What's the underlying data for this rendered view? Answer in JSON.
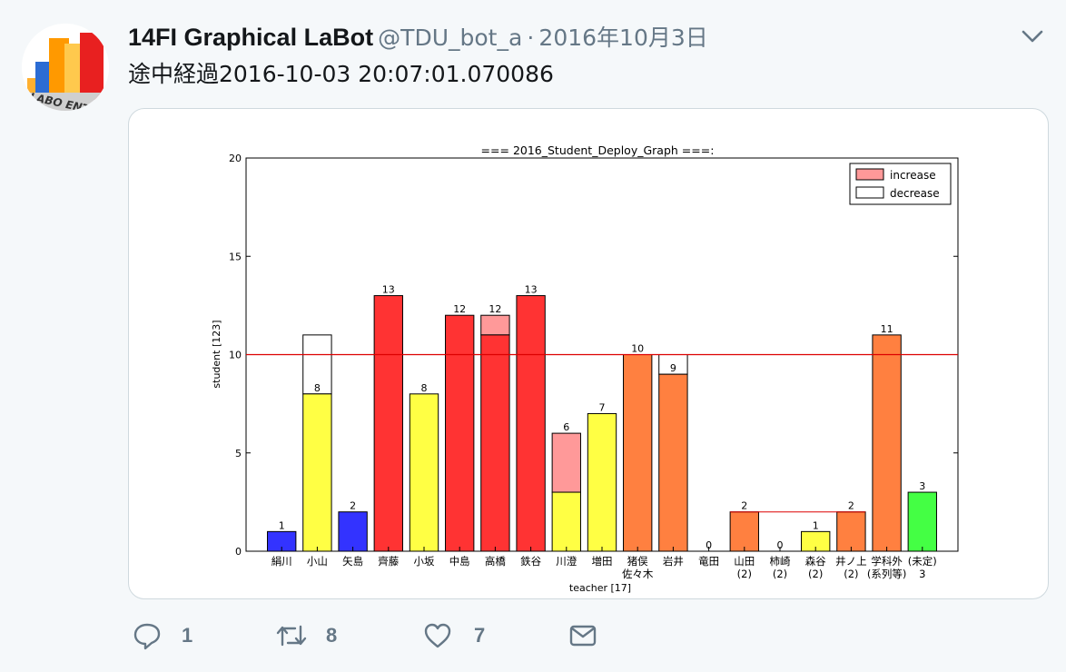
{
  "tweet": {
    "display_name": "14FI Graphical LaBot",
    "handle": "@TDU_bot_a",
    "separator": "·",
    "date": "2016年10月3日",
    "text": "途中経過2016-10-03 20:07:01.070086",
    "avatar_text": "LABO ENTRY"
  },
  "actions": {
    "reply_count": "1",
    "retweet_count": "8",
    "like_count": "7"
  },
  "icons": [
    "chevron-down-icon",
    "reply-icon",
    "retweet-icon",
    "like-icon",
    "dm-icon"
  ],
  "colors": {
    "blue": "#3333ff",
    "yellow": "#ffff44",
    "red": "#ff3333",
    "orange": "#ff8040",
    "green": "#44ff44",
    "increase": "#ff9999",
    "reference_line": "#dd0000",
    "decrease": "#ffffff"
  },
  "chart_data": {
    "type": "bar",
    "title": "=== 2016_Student_Deploy_Graph ===:",
    "xlabel": "teacher [17]",
    "ylabel": "student [123]",
    "ylim": [
      0,
      20
    ],
    "yticks": [
      0,
      5,
      10,
      15,
      20
    ],
    "reference_line": 10,
    "legend_position": "top-right",
    "legend": [
      {
        "label": "increase",
        "color": "#ff9999"
      },
      {
        "label": "decrease",
        "color": "#ffffff"
      }
    ],
    "categories": [
      {
        "label": [
          "絹川"
        ],
        "value": 1,
        "color": "blue"
      },
      {
        "label": [
          "小山"
        ],
        "value": 8,
        "color": "yellow",
        "decrease_to": 11
      },
      {
        "label": [
          "矢島"
        ],
        "value": 2,
        "color": "blue"
      },
      {
        "label": [
          "齊藤"
        ],
        "value": 13,
        "color": "red"
      },
      {
        "label": [
          "小坂"
        ],
        "value": 8,
        "color": "yellow"
      },
      {
        "label": [
          "中島"
        ],
        "value": 12,
        "color": "red"
      },
      {
        "label": [
          "高橋"
        ],
        "value": 12,
        "color": "red",
        "increase_from": 11
      },
      {
        "label": [
          "鉄谷"
        ],
        "value": 13,
        "color": "red"
      },
      {
        "label": [
          "川澄"
        ],
        "value": 6,
        "color": "yellow",
        "increase_from": 3
      },
      {
        "label": [
          "増田"
        ],
        "value": 7,
        "color": "yellow"
      },
      {
        "label": [
          "猪俣",
          "佐々木"
        ],
        "value": 10,
        "color": "orange"
      },
      {
        "label": [
          "岩井"
        ],
        "value": 9,
        "color": "orange",
        "decrease_to": 10
      },
      {
        "label": [
          "竜田"
        ],
        "value": 0,
        "color": "orange"
      },
      {
        "label": [
          "山田",
          "(2)"
        ],
        "value": 2,
        "color": "orange"
      },
      {
        "label": [
          "柿崎",
          "(2)"
        ],
        "value": 0,
        "color": "orange"
      },
      {
        "label": [
          "森谷",
          "(2)"
        ],
        "value": 1,
        "color": "yellow"
      },
      {
        "label": [
          "井ノ上",
          "(2)"
        ],
        "value": 2,
        "color": "orange"
      },
      {
        "label": [
          "学科外",
          "(系列等)"
        ],
        "value": 11,
        "color": "orange"
      },
      {
        "label": [
          "(未定)",
          "3"
        ],
        "value": 3,
        "color": "green"
      }
    ],
    "group_lines": [
      {
        "from_index": 13,
        "to_index": 16,
        "value": 2
      }
    ]
  }
}
